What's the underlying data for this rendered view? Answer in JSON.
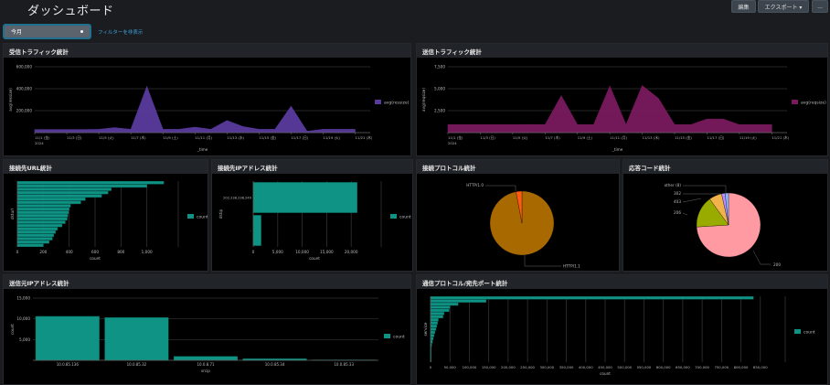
{
  "header": {
    "title": "ダッシュボード",
    "buttons": {
      "edit": "編集",
      "export": "エクスポート ▾",
      "more": "..."
    }
  },
  "filter": {
    "time_range": "今月",
    "hide_filters_link": "フィルターを非表示"
  },
  "colors": {
    "teal": "#0e9384",
    "purple": "#5a3a9e",
    "magenta": "#7a1a5e",
    "http11": "#a86a00",
    "http10": "#ff5a10",
    "code200": "#ff9aa2",
    "code206": "#9aab00",
    "code403": "#f2b24b",
    "code302": "#b38cff",
    "other": "#8ab8ff"
  },
  "panels": {
    "inbound": {
      "title": "受信トラフィック統計"
    },
    "outbound": {
      "title": "送信トラフィック統計"
    },
    "dest_url": {
      "title": "接続先URL統計"
    },
    "dest_ip": {
      "title": "接続先IPアドレス統計"
    },
    "protocol": {
      "title": "接続プロトコル統計"
    },
    "response": {
      "title": "応答コード統計"
    },
    "src_ip": {
      "title": "送信元IPアドレス統計"
    },
    "service": {
      "title": "通信プロトコル/宛先ポート統計"
    }
  },
  "chart_data": [
    {
      "id": "inbound",
      "type": "area",
      "title": "受信トラフィック統計",
      "xlabel": "_time",
      "ylabel": "avg(ressize)",
      "ylim": [
        0,
        600000
      ],
      "yticks": [
        "200,000",
        "400,000",
        "600,000"
      ],
      "ytick_values": [
        200000,
        400000,
        600000
      ],
      "xticks": [
        "11/1 (金)",
        "11/3 (日)",
        "11/5 (火)",
        "11/7 (木)",
        "11/9 (土)",
        "11/11 (月)",
        "11/13 (水)",
        "11/15 (金)",
        "11/17 (日)",
        "11/19 (火)",
        "11/21 (木)"
      ],
      "xtick_year": "2024",
      "legend": "avg(ressize)",
      "legend_position": "right",
      "x": [
        "11/1",
        "11/2",
        "11/3",
        "11/4",
        "11/5",
        "11/6",
        "11/7",
        "11/8",
        "11/9",
        "11/10",
        "11/11",
        "11/12",
        "11/13",
        "11/14",
        "11/15",
        "11/16",
        "11/17",
        "11/18",
        "11/19",
        "11/20",
        "11/21"
      ],
      "values": [
        28000,
        28000,
        28000,
        28000,
        30000,
        45000,
        30000,
        420000,
        30000,
        30000,
        50000,
        30000,
        110000,
        55000,
        30000,
        30000,
        240000,
        12000,
        30000,
        30000,
        30000
      ]
    },
    {
      "id": "outbound",
      "type": "area",
      "title": "送信トラフィック統計",
      "xlabel": "_time",
      "ylabel": "avg(reqsize)",
      "ylim": [
        0,
        7500
      ],
      "yticks": [
        "2,500",
        "5,000",
        "7,500"
      ],
      "ytick_values": [
        2500,
        5000,
        7500
      ],
      "xticks": [
        "11/1 (金)",
        "11/3 (日)",
        "11/5 (火)",
        "11/7 (木)",
        "11/9 (土)",
        "11/11 (月)",
        "11/13 (水)",
        "11/15 (金)",
        "11/17 (日)",
        "11/19 (火)",
        "11/21 (木)"
      ],
      "xtick_year": "2024",
      "legend": "avg(reqsize)",
      "legend_position": "right",
      "x": [
        "11/1",
        "11/2",
        "11/3",
        "11/4",
        "11/5",
        "11/6",
        "11/7",
        "11/8",
        "11/9",
        "11/10",
        "11/11",
        "11/12",
        "11/13",
        "11/14",
        "11/15",
        "11/16",
        "11/17",
        "11/18",
        "11/19",
        "11/20",
        "11/21"
      ],
      "values": [
        900,
        900,
        900,
        900,
        900,
        920,
        900,
        4200,
        900,
        900,
        5300,
        900,
        5350,
        3900,
        900,
        900,
        1550,
        1550,
        900,
        900,
        900
      ]
    },
    {
      "id": "dest_url",
      "type": "bar",
      "orientation": "horizontal",
      "title": "接続先URL統計",
      "xlabel": "count",
      "ylabel": "dsturl",
      "xlim": [
        0,
        1200
      ],
      "xticks": [
        "0",
        "200",
        "400",
        "600",
        "800",
        "1,000"
      ],
      "xtick_values": [
        0,
        200,
        400,
        600,
        800,
        1000
      ],
      "legend": "count",
      "legend_position": "right",
      "values": [
        1130,
        1000,
        725,
        700,
        650,
        525,
        490,
        410,
        400,
        395,
        390,
        385,
        370,
        345,
        310,
        295,
        280,
        270,
        245,
        200
      ]
    },
    {
      "id": "dest_ip",
      "type": "bar",
      "orientation": "horizontal",
      "title": "接続先IPアドレス統計",
      "xlabel": "count",
      "ylabel": "dstip",
      "xlim": [
        0,
        25000
      ],
      "xticks": [
        "0",
        "5,000",
        "10,000",
        "15,000",
        "20,000"
      ],
      "xtick_values": [
        0,
        5000,
        10000,
        15000,
        20000
      ],
      "legend": "count",
      "legend_position": "right",
      "categories": [
        "202.238.238.249",
        "-"
      ],
      "values": [
        21200,
        1600
      ]
    },
    {
      "id": "protocol",
      "type": "pie",
      "title": "接続プロトコル統計",
      "categories": [
        "HTTP/1.1",
        "HTTP/1.0"
      ],
      "values": [
        97,
        3
      ]
    },
    {
      "id": "response",
      "type": "pie",
      "title": "応答コード統計",
      "categories": [
        "200",
        "206",
        "403",
        "302",
        "other (8)"
      ],
      "values": [
        74,
        16,
        6.5,
        1.8,
        1.7
      ]
    },
    {
      "id": "src_ip",
      "type": "bar",
      "title": "送信元IPアドレス統計",
      "xlabel": "srcip",
      "ylabel": "count",
      "ylim": [
        0,
        15000
      ],
      "yticks": [
        "5,000",
        "10,000",
        "15,000"
      ],
      "ytick_values": [
        5000,
        10000,
        15000
      ],
      "legend": "count",
      "legend_position": "right",
      "categories": [
        "10.0.85.136",
        "10.0.85.32",
        "10.0.8.71",
        "10.0.85.34",
        "10.0.85.33"
      ],
      "values": [
        10600,
        10300,
        950,
        380,
        100
      ]
    },
    {
      "id": "service",
      "type": "bar",
      "orientation": "horizontal",
      "title": "通信プロトコル/宛先ポート統計",
      "xlabel": "count",
      "ylabel": "service",
      "xlim": [
        0,
        900000
      ],
      "xticks": [
        "0",
        "50,000",
        "100,000",
        "150,000",
        "200,000",
        "250,000",
        "300,000",
        "350,000",
        "400,000",
        "450,000",
        "500,000",
        "550,000",
        "600,000",
        "650,000",
        "700,000",
        "750,000",
        "800,000",
        "850,000"
      ],
      "xtick_values": [
        0,
        50000,
        100000,
        150000,
        200000,
        250000,
        300000,
        350000,
        400000,
        450000,
        500000,
        550000,
        600000,
        650000,
        700000,
        750000,
        800000,
        850000
      ],
      "legend": "count",
      "legend_position": "right",
      "values": [
        832000,
        143000,
        71000,
        50000,
        48000,
        35000,
        32000,
        20000,
        18000,
        16000,
        14000,
        11000,
        9000,
        7000,
        5000,
        3000,
        2000,
        1500,
        1000,
        800,
        500
      ]
    }
  ]
}
